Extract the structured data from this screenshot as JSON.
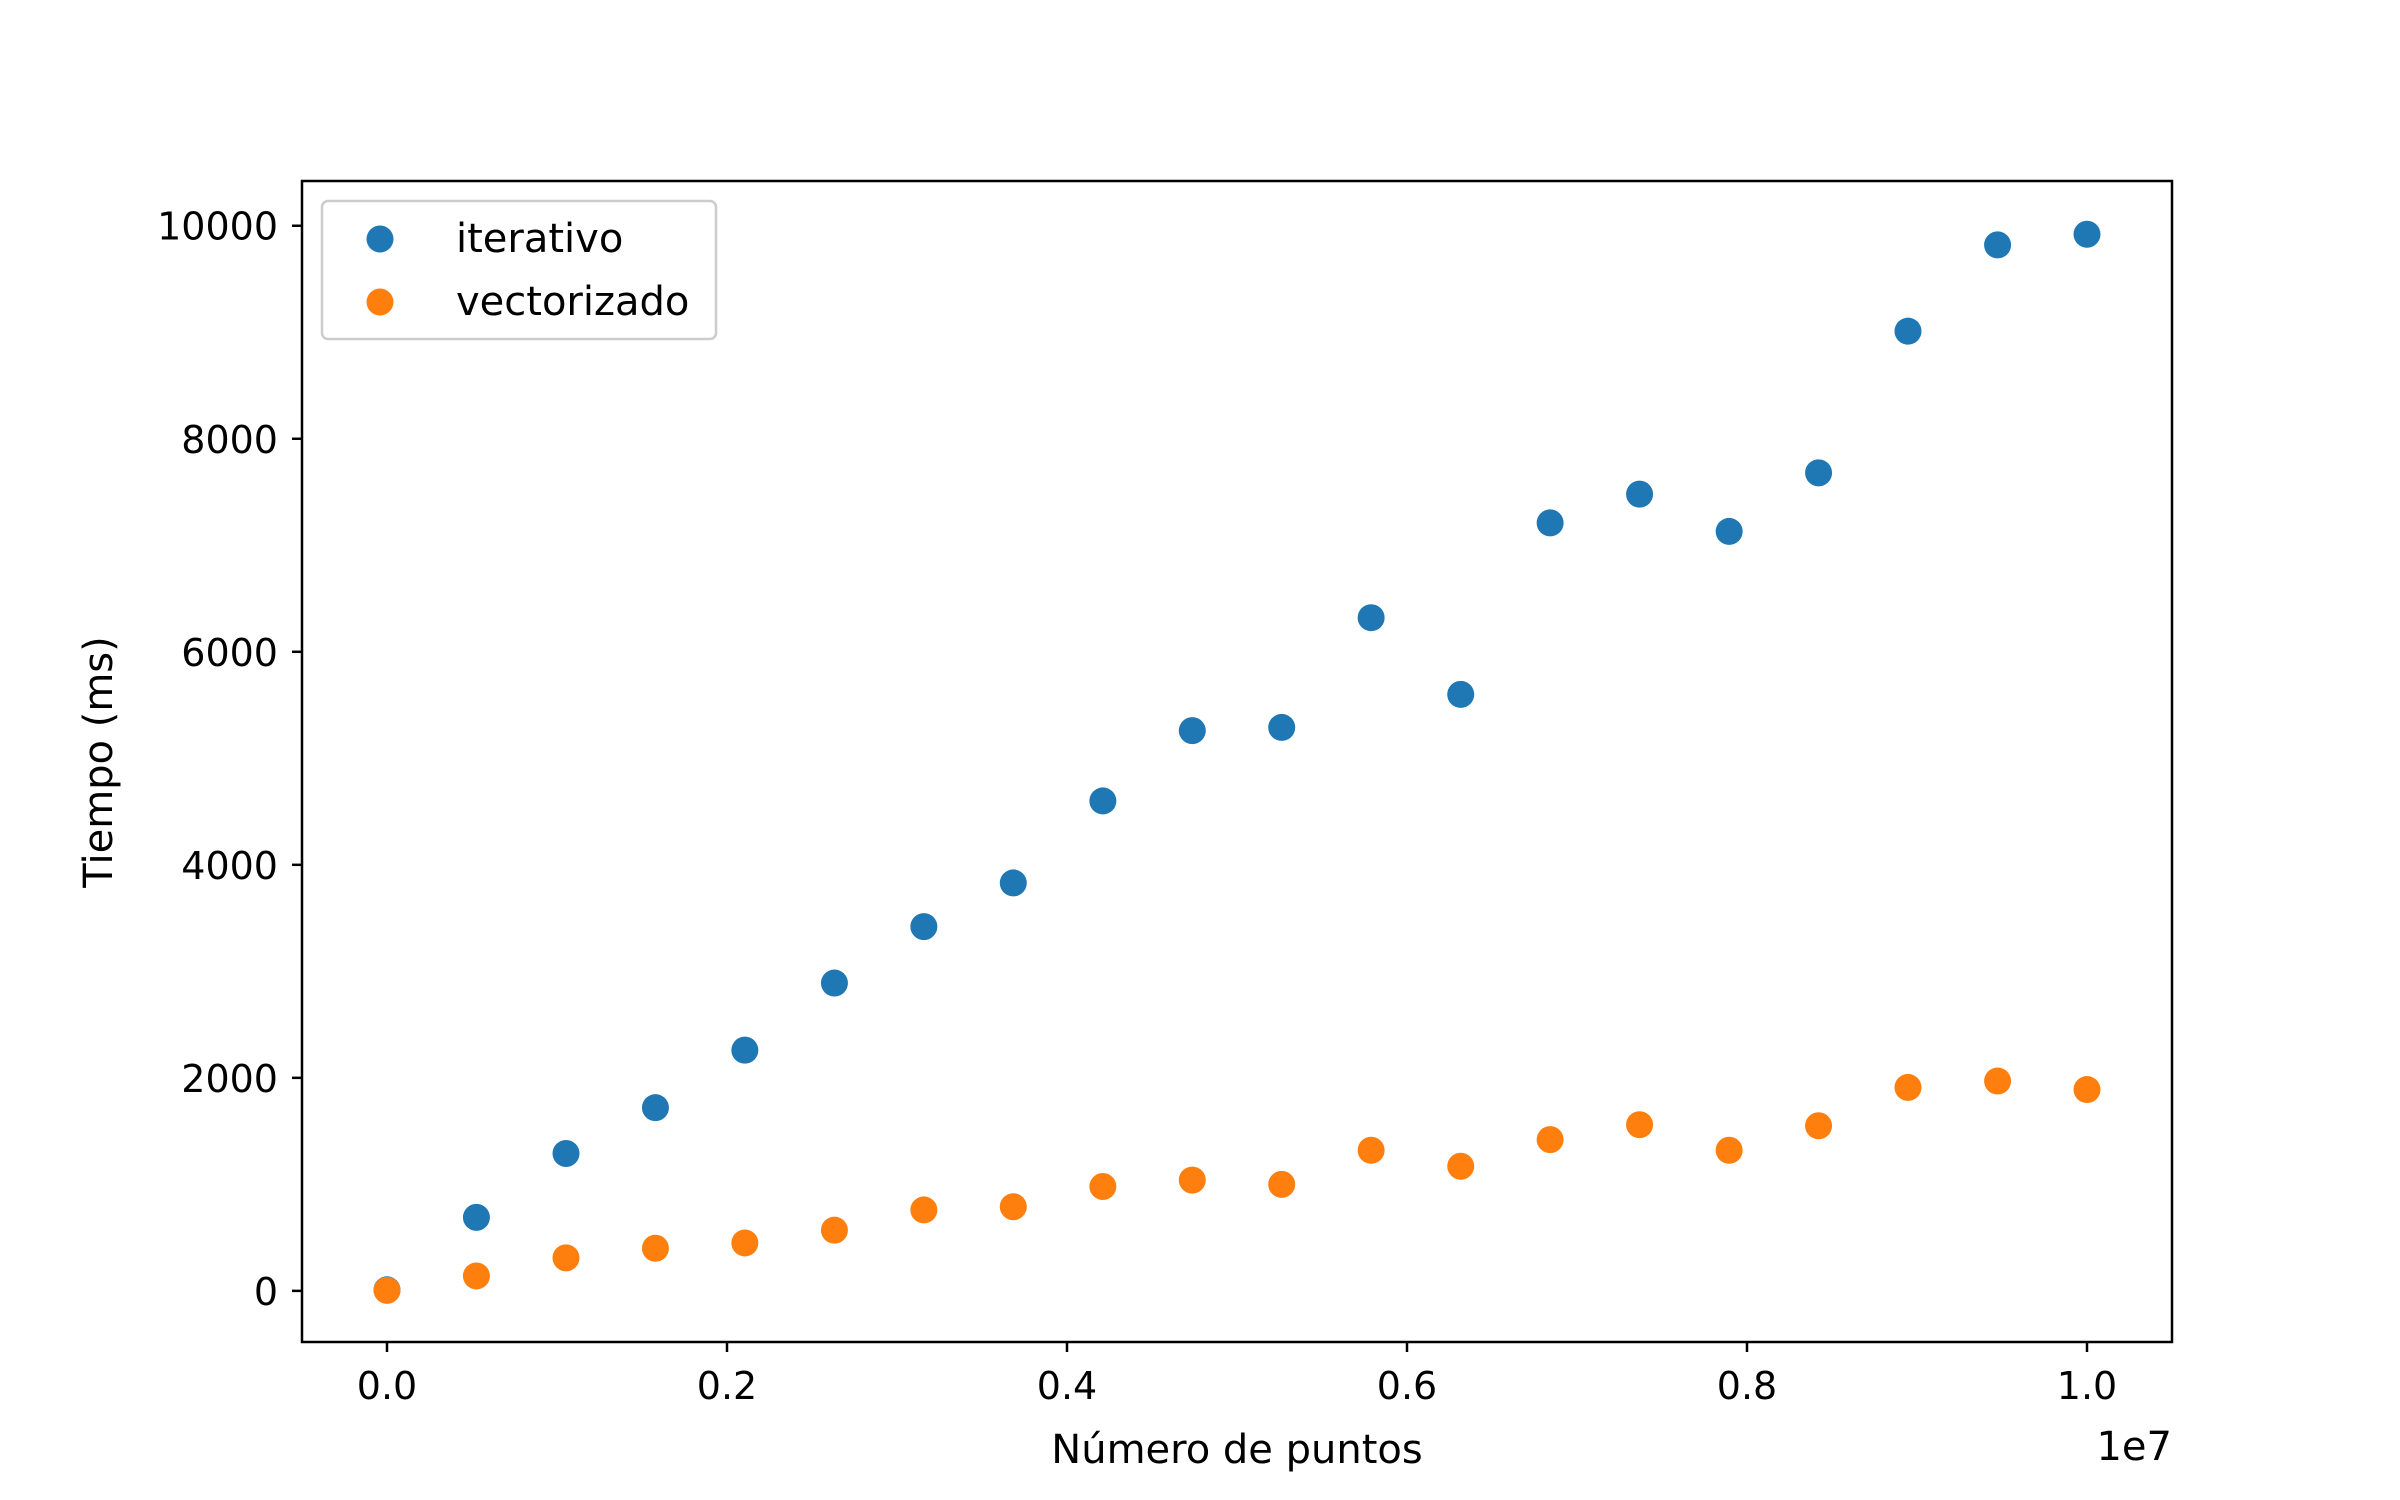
{
  "chart_data": {
    "type": "scatter",
    "title": "",
    "xlabel": "Número de puntos",
    "ylabel": "Tiempo (ms)",
    "x_offset_label": "1e7",
    "xlim": [
      -0.05,
      1.05
    ],
    "ylim": [
      -480,
      10420
    ],
    "x_ticks": [
      0.0,
      0.2,
      0.4,
      0.6,
      0.8,
      1.0
    ],
    "x_tick_labels": [
      "0.0",
      "0.2",
      "0.4",
      "0.6",
      "0.8",
      "1.0"
    ],
    "y_ticks": [
      0,
      2000,
      4000,
      6000,
      8000,
      10000
    ],
    "y_tick_labels": [
      "0",
      "2000",
      "4000",
      "6000",
      "8000",
      "10000"
    ],
    "grid": false,
    "legend_placement": "top-left",
    "x": [
      0.0,
      0.0526,
      0.1053,
      0.1579,
      0.2105,
      0.2632,
      0.3158,
      0.3684,
      0.4211,
      0.4737,
      0.5263,
      0.5789,
      0.6316,
      0.6842,
      0.7368,
      0.7895,
      0.8421,
      0.8947,
      0.9474,
      1.0
    ],
    "series": [
      {
        "name": "iterativo",
        "color": "#1f77b4",
        "values": [
          10,
          690,
          1290,
          1720,
          2260,
          2890,
          3420,
          3830,
          4600,
          5260,
          5290,
          6320,
          5600,
          7210,
          7480,
          7130,
          7680,
          9010,
          9820,
          9920
        ]
      },
      {
        "name": "vectorizado",
        "color": "#ff7f0e",
        "values": [
          5,
          140,
          310,
          400,
          450,
          570,
          760,
          790,
          980,
          1040,
          1000,
          1320,
          1170,
          1420,
          1560,
          1320,
          1550,
          1910,
          1970,
          1890
        ]
      }
    ]
  }
}
